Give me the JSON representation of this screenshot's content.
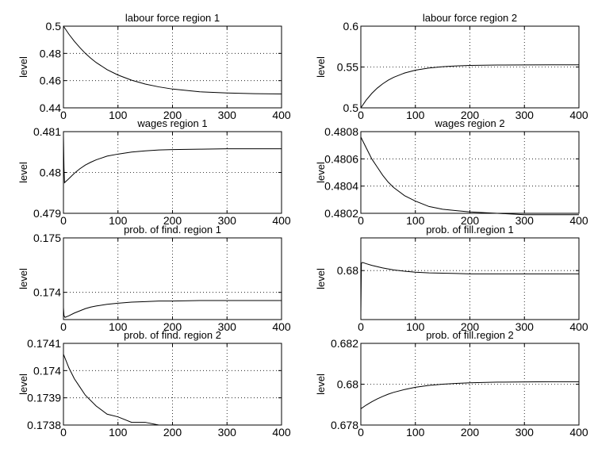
{
  "chart_data": [
    {
      "type": "line",
      "title": "labour force region 1",
      "ylabel": "level",
      "xlim": [
        0,
        400
      ],
      "ylim": [
        0.44,
        0.5
      ],
      "xticks": [
        0,
        100,
        200,
        300,
        400
      ],
      "xtick_labels": [
        "0",
        "100",
        "200",
        "300",
        "400"
      ],
      "yticks": [
        0.44,
        0.46,
        0.48,
        0.5
      ],
      "ytick_labels": [
        "0.44",
        "0.46",
        "0.48",
        "0.5"
      ],
      "grid": true,
      "series": [
        {
          "x": [
            0,
            10,
            20,
            30,
            40,
            50,
            60,
            80,
            100,
            125,
            150,
            175,
            200,
            250,
            300,
            350,
            400
          ],
          "values": [
            0.5,
            0.4941,
            0.4889,
            0.4843,
            0.4801,
            0.4765,
            0.4733,
            0.4681,
            0.4641,
            0.4603,
            0.4575,
            0.4554,
            0.4538,
            0.4518,
            0.4509,
            0.4504,
            0.4502
          ]
        }
      ]
    },
    {
      "type": "line",
      "title": "labour force region 2",
      "ylabel": "level",
      "xlim": [
        0,
        400
      ],
      "ylim": [
        0.5,
        0.6
      ],
      "xticks": [
        0,
        100,
        200,
        300,
        400
      ],
      "xtick_labels": [
        "0",
        "100",
        "200",
        "300",
        "400"
      ],
      "yticks": [
        0.5,
        0.55,
        0.6
      ],
      "ytick_labels": [
        "0.5",
        "0.55",
        "0.6"
      ],
      "grid": true,
      "series": [
        {
          "x": [
            0,
            10,
            20,
            30,
            40,
            50,
            60,
            80,
            100,
            125,
            150,
            175,
            200,
            250,
            300,
            350,
            400
          ],
          "values": [
            0.5,
            0.5097,
            0.5176,
            0.5241,
            0.5294,
            0.5338,
            0.5373,
            0.5426,
            0.5461,
            0.5488,
            0.5504,
            0.5513,
            0.5519,
            0.5524,
            0.5526,
            0.5527,
            0.5527
          ]
        }
      ]
    },
    {
      "type": "line",
      "title": "wages region 1",
      "ylabel": "level",
      "xlim": [
        0,
        400
      ],
      "ylim": [
        0.479,
        0.481
      ],
      "xticks": [
        0,
        100,
        200,
        300,
        400
      ],
      "xtick_labels": [
        "0",
        "100",
        "200",
        "300",
        "400"
      ],
      "yticks": [
        0.479,
        0.48,
        0.481
      ],
      "ytick_labels": [
        "0.479",
        "0.48",
        "0.481"
      ],
      "grid": true,
      "series": [
        {
          "x": [
            0,
            1,
            2,
            10,
            20,
            30,
            40,
            50,
            60,
            80,
            100,
            125,
            150,
            175,
            200,
            250,
            300,
            350,
            400
          ],
          "values": [
            0.4809,
            0.4801,
            0.47975,
            0.47985,
            0.47998,
            0.48009,
            0.48018,
            0.48025,
            0.48031,
            0.4804,
            0.48045,
            0.4805,
            0.48053,
            0.48055,
            0.48056,
            0.48057,
            0.48058,
            0.48058,
            0.48058
          ]
        }
      ]
    },
    {
      "type": "line",
      "title": "wages region 2",
      "ylabel": "level",
      "xlim": [
        0,
        400
      ],
      "ylim": [
        0.4802,
        0.4808
      ],
      "xticks": [
        0,
        100,
        200,
        300,
        400
      ],
      "xtick_labels": [
        "0",
        "100",
        "200",
        "300",
        "400"
      ],
      "yticks": [
        0.4802,
        0.4804,
        0.4806,
        0.4808
      ],
      "ytick_labels": [
        "0.4802",
        "0.4804",
        "0.4806",
        "0.4808"
      ],
      "grid": true,
      "series": [
        {
          "x": [
            0,
            10,
            20,
            30,
            40,
            50,
            60,
            80,
            100,
            125,
            150,
            175,
            200,
            250,
            300,
            350,
            400
          ],
          "values": [
            0.48076,
            0.48068,
            0.4806,
            0.48054,
            0.48048,
            0.48043,
            0.48039,
            0.48033,
            0.48029,
            0.48025,
            0.48023,
            0.48022,
            0.48021,
            0.4802,
            0.48019,
            0.48019,
            0.48019
          ]
        }
      ]
    },
    {
      "type": "line",
      "title": "prob. of find. region 1",
      "ylabel": "level",
      "xlim": [
        0,
        400
      ],
      "ylim": [
        0.1735,
        0.175
      ],
      "xticks": [
        0,
        100,
        200,
        300,
        400
      ],
      "xtick_labels": [
        "0",
        "100",
        "200",
        "300",
        "400"
      ],
      "yticks": [
        0.174,
        0.175
      ],
      "ytick_labels": [
        "0.174",
        "0.175"
      ],
      "grid": true,
      "series": [
        {
          "x": [
            0,
            1,
            3,
            10,
            20,
            30,
            40,
            50,
            60,
            80,
            100,
            125,
            150,
            175,
            200,
            250,
            300,
            350,
            400
          ],
          "values": [
            0.17372,
            0.17357,
            0.17354,
            0.17357,
            0.17362,
            0.17366,
            0.1737,
            0.17373,
            0.17375,
            0.17378,
            0.1738,
            0.17382,
            0.17383,
            0.17384,
            0.17384,
            0.17385,
            0.17385,
            0.17385,
            0.17385
          ]
        }
      ]
    },
    {
      "type": "line",
      "title": "prob. of fill.region 1",
      "ylabel": "level",
      "xlim": [
        0,
        400
      ],
      "ylim": [
        0.6785,
        0.681
      ],
      "xticks": [
        0,
        100,
        200,
        300,
        400
      ],
      "xtick_labels": [
        "0",
        "100",
        "200",
        "300",
        "400"
      ],
      "yticks": [
        0.68
      ],
      "ytick_labels": [
        "0.68"
      ],
      "grid": true,
      "series": [
        {
          "x": [
            0,
            1,
            3,
            10,
            20,
            30,
            40,
            50,
            60,
            80,
            100,
            125,
            150,
            175,
            200,
            250,
            300,
            350,
            400
          ],
          "values": [
            0.6787,
            0.68022,
            0.68025,
            0.68021,
            0.68016,
            0.68012,
            0.68008,
            0.68005,
            0.68002,
            0.67998,
            0.67995,
            0.67993,
            0.67992,
            0.67991,
            0.6799,
            0.6799,
            0.6799,
            0.6799,
            0.6799
          ]
        }
      ]
    },
    {
      "type": "line",
      "title": "prob. of find. region 2",
      "ylabel": "level",
      "xlim": [
        0,
        400
      ],
      "ylim": [
        0.1738,
        0.1741
      ],
      "xticks": [
        0,
        100,
        200,
        300,
        400
      ],
      "xtick_labels": [
        "0",
        "100",
        "200",
        "300",
        "400"
      ],
      "yticks": [
        0.1738,
        0.1739,
        0.174,
        0.1741
      ],
      "ytick_labels": [
        "0.1738",
        "0.1739",
        "0.174",
        "0.1741"
      ],
      "grid": true,
      "series": [
        {
          "x": [
            0,
            10,
            20,
            30,
            40,
            50,
            60,
            80,
            100,
            125,
            150,
            175,
            200,
            250,
            300,
            350,
            400
          ],
          "values": [
            0.17406,
            0.17401,
            0.17397,
            0.17394,
            0.17391,
            0.17389,
            0.17387,
            0.17384,
            0.17383,
            0.17381,
            0.17381,
            0.1738,
            0.1738,
            0.1738,
            0.1738,
            0.1738,
            0.1738
          ]
        }
      ]
    },
    {
      "type": "line",
      "title": "prob. of fill.region 2",
      "ylabel": "level",
      "xlim": [
        0,
        400
      ],
      "ylim": [
        0.678,
        0.682
      ],
      "xticks": [
        0,
        100,
        200,
        300,
        400
      ],
      "xtick_labels": [
        "0",
        "100",
        "200",
        "300",
        "400"
      ],
      "yticks": [
        0.678,
        0.68,
        0.682
      ],
      "ytick_labels": [
        "0.678",
        "0.68",
        "0.682"
      ],
      "grid": true,
      "series": [
        {
          "x": [
            0,
            10,
            20,
            30,
            40,
            50,
            60,
            80,
            100,
            125,
            150,
            175,
            200,
            250,
            300,
            350,
            400
          ],
          "values": [
            0.6788,
            0.67898,
            0.67914,
            0.67928,
            0.6794,
            0.67951,
            0.6796,
            0.67974,
            0.67985,
            0.67994,
            0.68,
            0.68004,
            0.68007,
            0.6801,
            0.68011,
            0.68012,
            0.68012
          ]
        }
      ]
    }
  ]
}
